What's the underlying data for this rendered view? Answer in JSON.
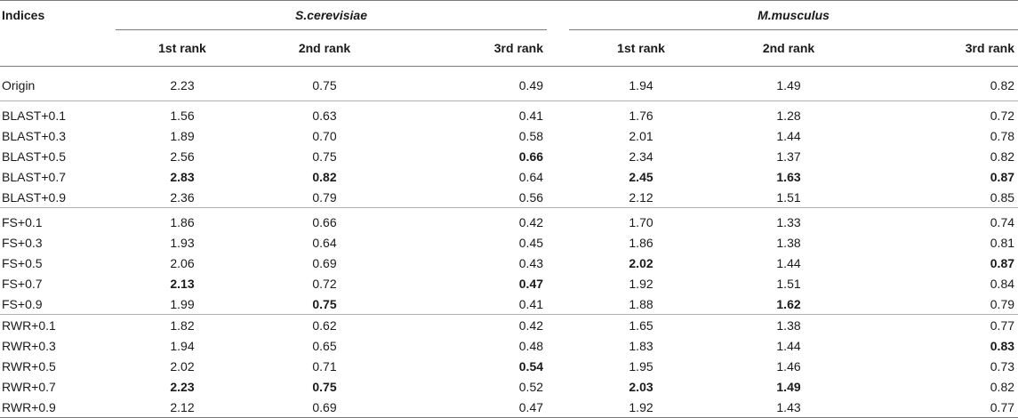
{
  "header": {
    "indices_label": "Indices",
    "species": [
      "S.cerevisiae",
      "M.musculus"
    ],
    "ranks": [
      "1st rank",
      "2nd rank",
      "3rd rank"
    ]
  },
  "rows": [
    {
      "label": "Origin",
      "values": [
        "2.23",
        "0.75",
        "0.49",
        "1.94",
        "1.49",
        "0.82"
      ],
      "bold": [
        false,
        false,
        false,
        false,
        false,
        false
      ]
    },
    {
      "label": "BLAST+0.1",
      "values": [
        "1.56",
        "0.63",
        "0.41",
        "1.76",
        "1.28",
        "0.72"
      ],
      "bold": [
        false,
        false,
        false,
        false,
        false,
        false
      ]
    },
    {
      "label": "BLAST+0.3",
      "values": [
        "1.89",
        "0.70",
        "0.58",
        "2.01",
        "1.44",
        "0.78"
      ],
      "bold": [
        false,
        false,
        false,
        false,
        false,
        false
      ]
    },
    {
      "label": "BLAST+0.5",
      "values": [
        "2.56",
        "0.75",
        "0.66",
        "2.34",
        "1.37",
        "0.82"
      ],
      "bold": [
        false,
        false,
        true,
        false,
        false,
        false
      ]
    },
    {
      "label": "BLAST+0.7",
      "values": [
        "2.83",
        "0.82",
        "0.64",
        "2.45",
        "1.63",
        "0.87"
      ],
      "bold": [
        true,
        true,
        false,
        true,
        true,
        true
      ]
    },
    {
      "label": "BLAST+0.9",
      "values": [
        "2.36",
        "0.79",
        "0.56",
        "2.12",
        "1.51",
        "0.85"
      ],
      "bold": [
        false,
        false,
        false,
        false,
        false,
        false
      ]
    },
    {
      "label": "FS+0.1",
      "values": [
        "1.86",
        "0.66",
        "0.42",
        "1.70",
        "1.33",
        "0.74"
      ],
      "bold": [
        false,
        false,
        false,
        false,
        false,
        false
      ]
    },
    {
      "label": "FS+0.3",
      "values": [
        "1.93",
        "0.64",
        "0.45",
        "1.86",
        "1.38",
        "0.81"
      ],
      "bold": [
        false,
        false,
        false,
        false,
        false,
        false
      ]
    },
    {
      "label": "FS+0.5",
      "values": [
        "2.06",
        "0.69",
        "0.43",
        "2.02",
        "1.44",
        "0.87"
      ],
      "bold": [
        false,
        false,
        false,
        true,
        false,
        true
      ]
    },
    {
      "label": "FS+0.7",
      "values": [
        "2.13",
        "0.72",
        "0.47",
        "1.92",
        "1.51",
        "0.84"
      ],
      "bold": [
        true,
        false,
        true,
        false,
        false,
        false
      ]
    },
    {
      "label": "FS+0.9",
      "values": [
        "1.99",
        "0.75",
        "0.41",
        "1.88",
        "1.62",
        "0.79"
      ],
      "bold": [
        false,
        true,
        false,
        false,
        true,
        false
      ]
    },
    {
      "label": "RWR+0.1",
      "values": [
        "1.82",
        "0.62",
        "0.42",
        "1.65",
        "1.38",
        "0.77"
      ],
      "bold": [
        false,
        false,
        false,
        false,
        false,
        false
      ]
    },
    {
      "label": "RWR+0.3",
      "values": [
        "1.94",
        "0.65",
        "0.48",
        "1.83",
        "1.44",
        "0.83"
      ],
      "bold": [
        false,
        false,
        false,
        false,
        false,
        true
      ]
    },
    {
      "label": "RWR+0.5",
      "values": [
        "2.02",
        "0.71",
        "0.54",
        "1.95",
        "1.46",
        "0.73"
      ],
      "bold": [
        false,
        false,
        true,
        false,
        false,
        false
      ]
    },
    {
      "label": "RWR+0.7",
      "values": [
        "2.23",
        "0.75",
        "0.52",
        "2.03",
        "1.49",
        "0.82"
      ],
      "bold": [
        true,
        true,
        false,
        true,
        true,
        false
      ]
    },
    {
      "label": "RWR+0.9",
      "values": [
        "2.12",
        "0.69",
        "0.47",
        "1.92",
        "1.43",
        "0.77"
      ],
      "bold": [
        false,
        false,
        false,
        false,
        false,
        false
      ]
    }
  ]
}
